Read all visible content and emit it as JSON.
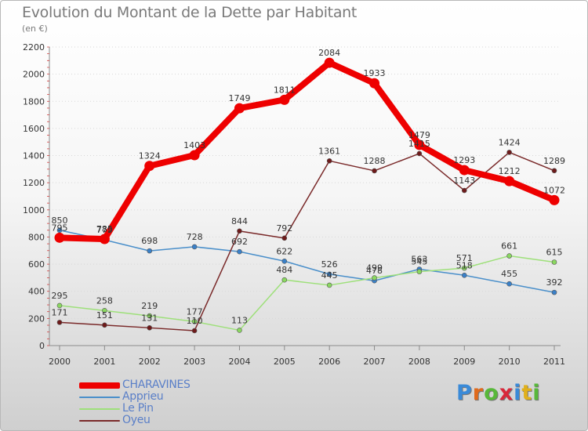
{
  "title": "Evolution du Montant de la Dette par Habitant",
  "subtitle": "(en €)",
  "logo": {
    "text": "Proxiti",
    "letter_colors": [
      "#3a8ad8",
      "#e06a1c",
      "#58b83a",
      "#d8283a",
      "#3a8ad8",
      "#e0b01c",
      "#58b83a"
    ]
  },
  "chart_data": {
    "type": "line",
    "title": "Evolution du Montant de la Dette par Habitant",
    "subtitle": "(en €)",
    "xlabel": "",
    "ylabel": "",
    "ylim": [
      0,
      2200
    ],
    "yticks": [
      0,
      200,
      400,
      600,
      800,
      1000,
      1200,
      1400,
      1600,
      1800,
      2000,
      2200
    ],
    "categories": [
      "2000",
      "2001",
      "2002",
      "2003",
      "2004",
      "2005",
      "2006",
      "2007",
      "2008",
      "2009",
      "2010",
      "2011"
    ],
    "grid": "dotted horizontal",
    "legend_position": "bottom-left",
    "series": [
      {
        "name": "CHARAVINES",
        "color": "#ee0000",
        "marker": "#ee0000",
        "width": 8,
        "values": [
          795,
          785,
          1324,
          1403,
          1749,
          1811,
          2084,
          1933,
          1479,
          1293,
          1212,
          1072
        ]
      },
      {
        "name": "Apprieu",
        "color": "#4a8fca",
        "marker": "#3a80c8",
        "width": 1.5,
        "values": [
          850,
          779,
          698,
          728,
          692,
          622,
          526,
          478,
          563,
          518,
          455,
          392
        ]
      },
      {
        "name": "Le Pin",
        "color": "#9ee07a",
        "marker": "#8ad860",
        "width": 1.5,
        "values": [
          295,
          258,
          219,
          177,
          113,
          484,
          445,
          499,
          545,
          571,
          661,
          615
        ]
      },
      {
        "name": "Oyeu",
        "color": "#7a2a2a",
        "marker": "#6e1a1a",
        "width": 1.5,
        "values": [
          171,
          151,
          131,
          110,
          844,
          792,
          1361,
          1288,
          1415,
          1143,
          1424,
          1289
        ]
      }
    ]
  }
}
